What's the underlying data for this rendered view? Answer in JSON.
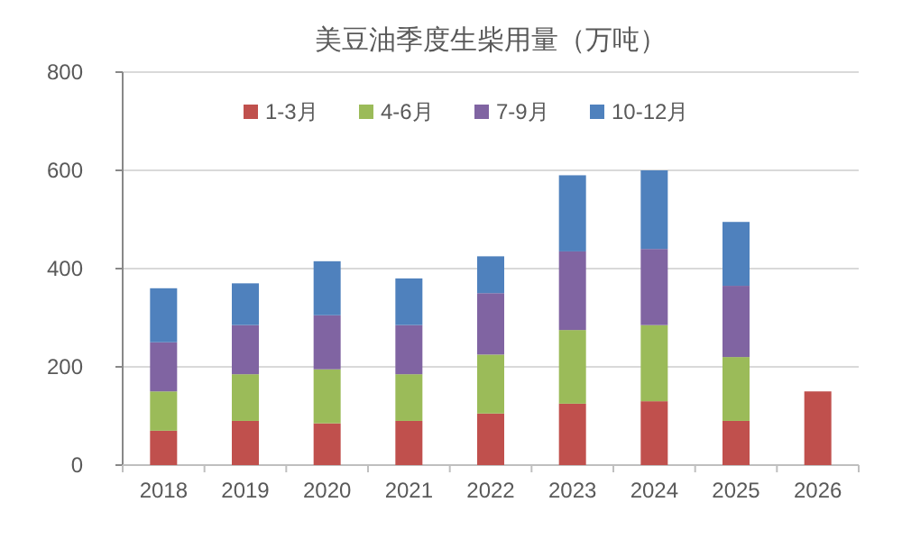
{
  "chart_data": {
    "type": "bar",
    "title": "美豆油季度生柴用量（万吨）",
    "categories": [
      "2018",
      "2019",
      "2020",
      "2021",
      "2022",
      "2023",
      "2024",
      "2025",
      "2026"
    ],
    "stacked": true,
    "ylim": [
      0,
      800
    ],
    "yticks": [
      0,
      200,
      400,
      600,
      800
    ],
    "grid": "y",
    "legend": "top",
    "series": [
      {
        "name": "1-3月",
        "color": "#c0504d",
        "values": [
          70,
          90,
          85,
          90,
          105,
          125,
          130,
          90,
          150
        ]
      },
      {
        "name": "4-6月",
        "color": "#9bbb59",
        "values": [
          80,
          95,
          110,
          95,
          120,
          150,
          155,
          130,
          null
        ]
      },
      {
        "name": "7-9月",
        "color": "#8064a2",
        "values": [
          100,
          100,
          110,
          100,
          125,
          160,
          155,
          145,
          null
        ]
      },
      {
        "name": "10-12月",
        "color": "#4f81bd",
        "values": [
          110,
          85,
          110,
          95,
          75,
          155,
          160,
          130,
          null
        ]
      }
    ]
  }
}
